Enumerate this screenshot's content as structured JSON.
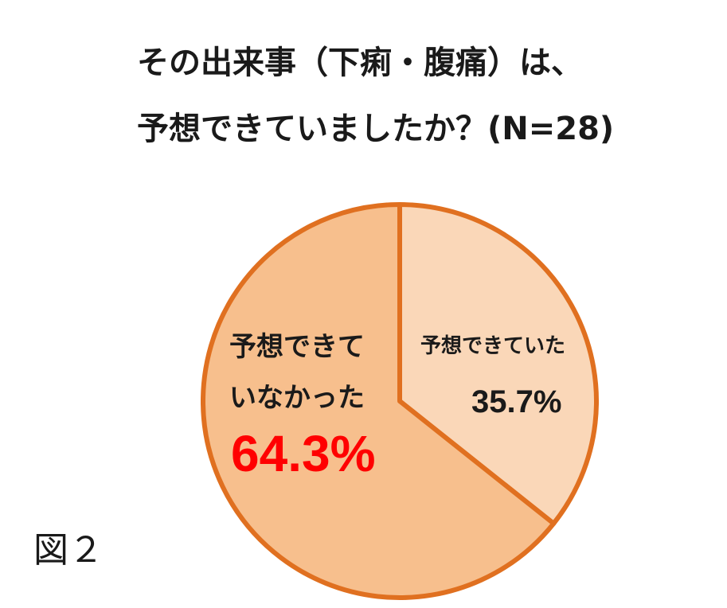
{
  "chart_data": {
    "type": "pie",
    "title_line1": "その出来事（下痢・腹痛）は、",
    "title_line2": "予想できていましたか？(N=28)",
    "slices": [
      {
        "label": "予想できていた",
        "label_lines": [
          "予想できていた"
        ],
        "value": 35.7,
        "value_text": "35.7%",
        "color": "#fad7b8",
        "text_color": "#1a1a1a"
      },
      {
        "label": "予想できていなかった",
        "label_lines": [
          "予想できて",
          "いなかった"
        ],
        "value": 64.3,
        "value_text": "64.3%",
        "color": "#f7bf8d",
        "text_color": "#ff0000"
      }
    ],
    "stroke_color": "#e07020",
    "start_angle": "12 o'clock",
    "direction": "clockwise"
  },
  "figure_label": "図２"
}
